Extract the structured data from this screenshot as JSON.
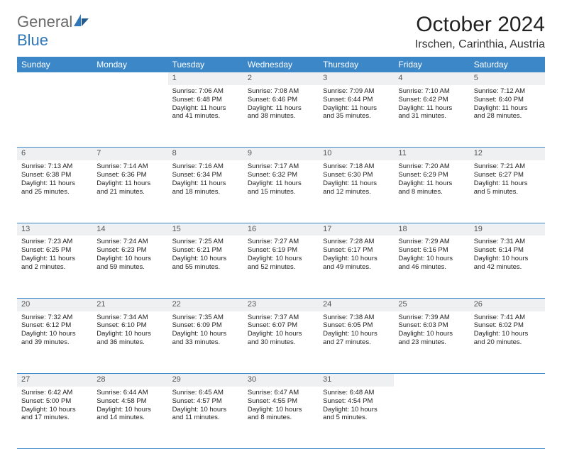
{
  "brand": {
    "part1": "General",
    "part2": "Blue"
  },
  "title": "October 2024",
  "location": "Irschen, Carinthia, Austria",
  "colors": {
    "header_bg": "#3b87c8",
    "header_fg": "#ffffff",
    "daynum_bg": "#eef0f2",
    "border": "#3b87c8",
    "logo_gray": "#6a6a6a",
    "logo_blue": "#2f77b8"
  },
  "weekdays": [
    "Sunday",
    "Monday",
    "Tuesday",
    "Wednesday",
    "Thursday",
    "Friday",
    "Saturday"
  ],
  "weeks": [
    [
      null,
      null,
      {
        "n": "1",
        "sr": "Sunrise: 7:06 AM",
        "ss": "Sunset: 6:48 PM",
        "dl": "Daylight: 11 hours and 41 minutes."
      },
      {
        "n": "2",
        "sr": "Sunrise: 7:08 AM",
        "ss": "Sunset: 6:46 PM",
        "dl": "Daylight: 11 hours and 38 minutes."
      },
      {
        "n": "3",
        "sr": "Sunrise: 7:09 AM",
        "ss": "Sunset: 6:44 PM",
        "dl": "Daylight: 11 hours and 35 minutes."
      },
      {
        "n": "4",
        "sr": "Sunrise: 7:10 AM",
        "ss": "Sunset: 6:42 PM",
        "dl": "Daylight: 11 hours and 31 minutes."
      },
      {
        "n": "5",
        "sr": "Sunrise: 7:12 AM",
        "ss": "Sunset: 6:40 PM",
        "dl": "Daylight: 11 hours and 28 minutes."
      }
    ],
    [
      {
        "n": "6",
        "sr": "Sunrise: 7:13 AM",
        "ss": "Sunset: 6:38 PM",
        "dl": "Daylight: 11 hours and 25 minutes."
      },
      {
        "n": "7",
        "sr": "Sunrise: 7:14 AM",
        "ss": "Sunset: 6:36 PM",
        "dl": "Daylight: 11 hours and 21 minutes."
      },
      {
        "n": "8",
        "sr": "Sunrise: 7:16 AM",
        "ss": "Sunset: 6:34 PM",
        "dl": "Daylight: 11 hours and 18 minutes."
      },
      {
        "n": "9",
        "sr": "Sunrise: 7:17 AM",
        "ss": "Sunset: 6:32 PM",
        "dl": "Daylight: 11 hours and 15 minutes."
      },
      {
        "n": "10",
        "sr": "Sunrise: 7:18 AM",
        "ss": "Sunset: 6:30 PM",
        "dl": "Daylight: 11 hours and 12 minutes."
      },
      {
        "n": "11",
        "sr": "Sunrise: 7:20 AM",
        "ss": "Sunset: 6:29 PM",
        "dl": "Daylight: 11 hours and 8 minutes."
      },
      {
        "n": "12",
        "sr": "Sunrise: 7:21 AM",
        "ss": "Sunset: 6:27 PM",
        "dl": "Daylight: 11 hours and 5 minutes."
      }
    ],
    [
      {
        "n": "13",
        "sr": "Sunrise: 7:23 AM",
        "ss": "Sunset: 6:25 PM",
        "dl": "Daylight: 11 hours and 2 minutes."
      },
      {
        "n": "14",
        "sr": "Sunrise: 7:24 AM",
        "ss": "Sunset: 6:23 PM",
        "dl": "Daylight: 10 hours and 59 minutes."
      },
      {
        "n": "15",
        "sr": "Sunrise: 7:25 AM",
        "ss": "Sunset: 6:21 PM",
        "dl": "Daylight: 10 hours and 55 minutes."
      },
      {
        "n": "16",
        "sr": "Sunrise: 7:27 AM",
        "ss": "Sunset: 6:19 PM",
        "dl": "Daylight: 10 hours and 52 minutes."
      },
      {
        "n": "17",
        "sr": "Sunrise: 7:28 AM",
        "ss": "Sunset: 6:17 PM",
        "dl": "Daylight: 10 hours and 49 minutes."
      },
      {
        "n": "18",
        "sr": "Sunrise: 7:29 AM",
        "ss": "Sunset: 6:16 PM",
        "dl": "Daylight: 10 hours and 46 minutes."
      },
      {
        "n": "19",
        "sr": "Sunrise: 7:31 AM",
        "ss": "Sunset: 6:14 PM",
        "dl": "Daylight: 10 hours and 42 minutes."
      }
    ],
    [
      {
        "n": "20",
        "sr": "Sunrise: 7:32 AM",
        "ss": "Sunset: 6:12 PM",
        "dl": "Daylight: 10 hours and 39 minutes."
      },
      {
        "n": "21",
        "sr": "Sunrise: 7:34 AM",
        "ss": "Sunset: 6:10 PM",
        "dl": "Daylight: 10 hours and 36 minutes."
      },
      {
        "n": "22",
        "sr": "Sunrise: 7:35 AM",
        "ss": "Sunset: 6:09 PM",
        "dl": "Daylight: 10 hours and 33 minutes."
      },
      {
        "n": "23",
        "sr": "Sunrise: 7:37 AM",
        "ss": "Sunset: 6:07 PM",
        "dl": "Daylight: 10 hours and 30 minutes."
      },
      {
        "n": "24",
        "sr": "Sunrise: 7:38 AM",
        "ss": "Sunset: 6:05 PM",
        "dl": "Daylight: 10 hours and 27 minutes."
      },
      {
        "n": "25",
        "sr": "Sunrise: 7:39 AM",
        "ss": "Sunset: 6:03 PM",
        "dl": "Daylight: 10 hours and 23 minutes."
      },
      {
        "n": "26",
        "sr": "Sunrise: 7:41 AM",
        "ss": "Sunset: 6:02 PM",
        "dl": "Daylight: 10 hours and 20 minutes."
      }
    ],
    [
      {
        "n": "27",
        "sr": "Sunrise: 6:42 AM",
        "ss": "Sunset: 5:00 PM",
        "dl": "Daylight: 10 hours and 17 minutes."
      },
      {
        "n": "28",
        "sr": "Sunrise: 6:44 AM",
        "ss": "Sunset: 4:58 PM",
        "dl": "Daylight: 10 hours and 14 minutes."
      },
      {
        "n": "29",
        "sr": "Sunrise: 6:45 AM",
        "ss": "Sunset: 4:57 PM",
        "dl": "Daylight: 10 hours and 11 minutes."
      },
      {
        "n": "30",
        "sr": "Sunrise: 6:47 AM",
        "ss": "Sunset: 4:55 PM",
        "dl": "Daylight: 10 hours and 8 minutes."
      },
      {
        "n": "31",
        "sr": "Sunrise: 6:48 AM",
        "ss": "Sunset: 4:54 PM",
        "dl": "Daylight: 10 hours and 5 minutes."
      },
      null,
      null
    ]
  ]
}
